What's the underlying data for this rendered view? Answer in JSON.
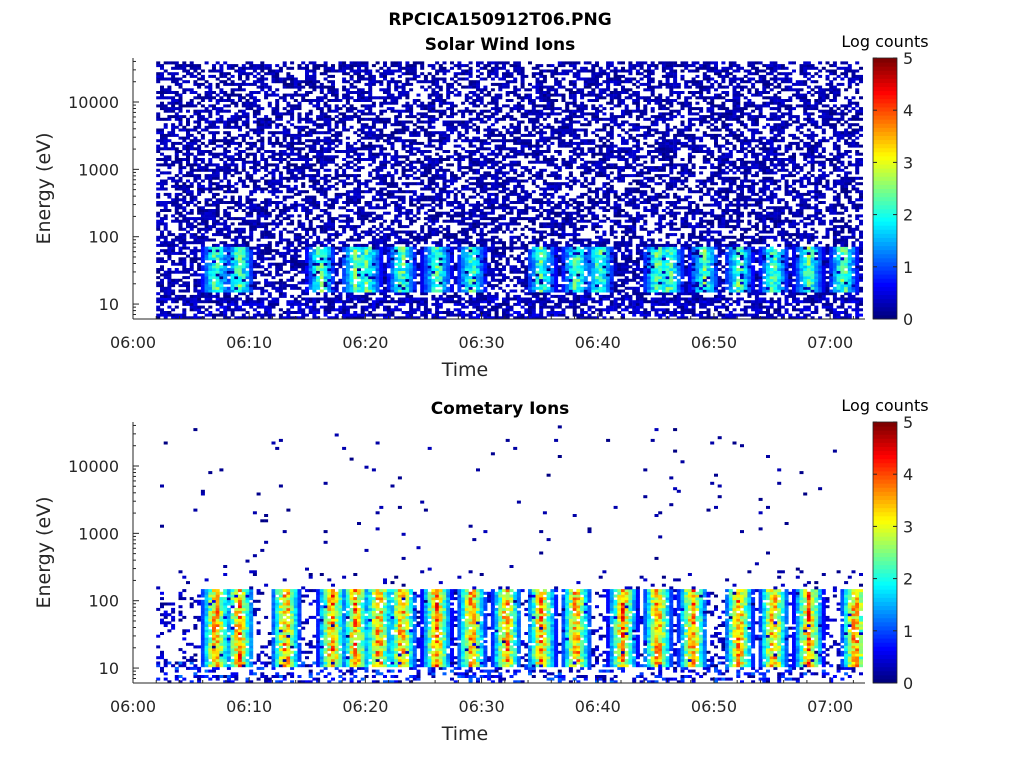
{
  "figure": {
    "title": "RPCICA150912T06.PNG"
  },
  "colorbar": {
    "label": "Log counts",
    "ticks": [
      "0",
      "1",
      "2",
      "3",
      "4",
      "5"
    ],
    "range": [
      0,
      5
    ]
  },
  "chart_data": [
    {
      "type": "heatmap",
      "title": "Solar Wind Ions",
      "xlabel": "Time",
      "ylabel": "Energy (eV)",
      "x_ticks": [
        "06:00",
        "06:10",
        "06:20",
        "06:30",
        "06:40",
        "06:50",
        "07:00"
      ],
      "y_ticks": [
        "10",
        "100",
        "1000",
        "10000"
      ],
      "y_scale": "log",
      "ylim": [
        6,
        45000
      ],
      "xlim": [
        "06:00",
        "07:03"
      ],
      "data_start": "06:02",
      "colorscale": "jet",
      "z_label": "Log counts",
      "zlim": [
        0,
        5
      ],
      "peak_log_counts": 2.5,
      "description_values": {
        "background_level": "0–1 log counts sparse noise 10 eV – 30 keV",
        "enhanced_band_energy_eV": [
          15,
          70
        ],
        "enhancement_times": [
          "06:07",
          "06:09",
          "06:16",
          "06:19",
          "06:20",
          "06:23",
          "06:26",
          "06:29",
          "06:35",
          "06:38",
          "06:40",
          "06:45",
          "06:46",
          "06:49",
          "06:52",
          "06:55",
          "06:58",
          "07:01"
        ]
      }
    },
    {
      "type": "heatmap",
      "title": "Cometary Ions",
      "xlabel": "Time",
      "ylabel": "Energy (eV)",
      "x_ticks": [
        "06:00",
        "06:10",
        "06:20",
        "06:30",
        "06:40",
        "06:50",
        "07:00"
      ],
      "y_ticks": [
        "10",
        "100",
        "1000",
        "10000"
      ],
      "y_scale": "log",
      "ylim": [
        6,
        45000
      ],
      "xlim": [
        "06:00",
        "07:03"
      ],
      "data_start": "06:02",
      "colorscale": "jet",
      "z_label": "Log counts",
      "zlim": [
        0,
        5
      ],
      "peak_log_counts": 4.0,
      "description_values": {
        "background_level": "sparse 0–0.5 log counts above 300 eV",
        "enhanced_band_energy_eV": [
          10,
          150
        ],
        "enhancement_times": [
          "06:07",
          "06:09",
          "06:13",
          "06:17",
          "06:19",
          "06:21",
          "06:23",
          "06:26",
          "06:29",
          "06:32",
          "06:35",
          "06:38",
          "06:42",
          "06:45",
          "06:48",
          "06:52",
          "06:55",
          "06:58",
          "07:02"
        ]
      }
    }
  ]
}
